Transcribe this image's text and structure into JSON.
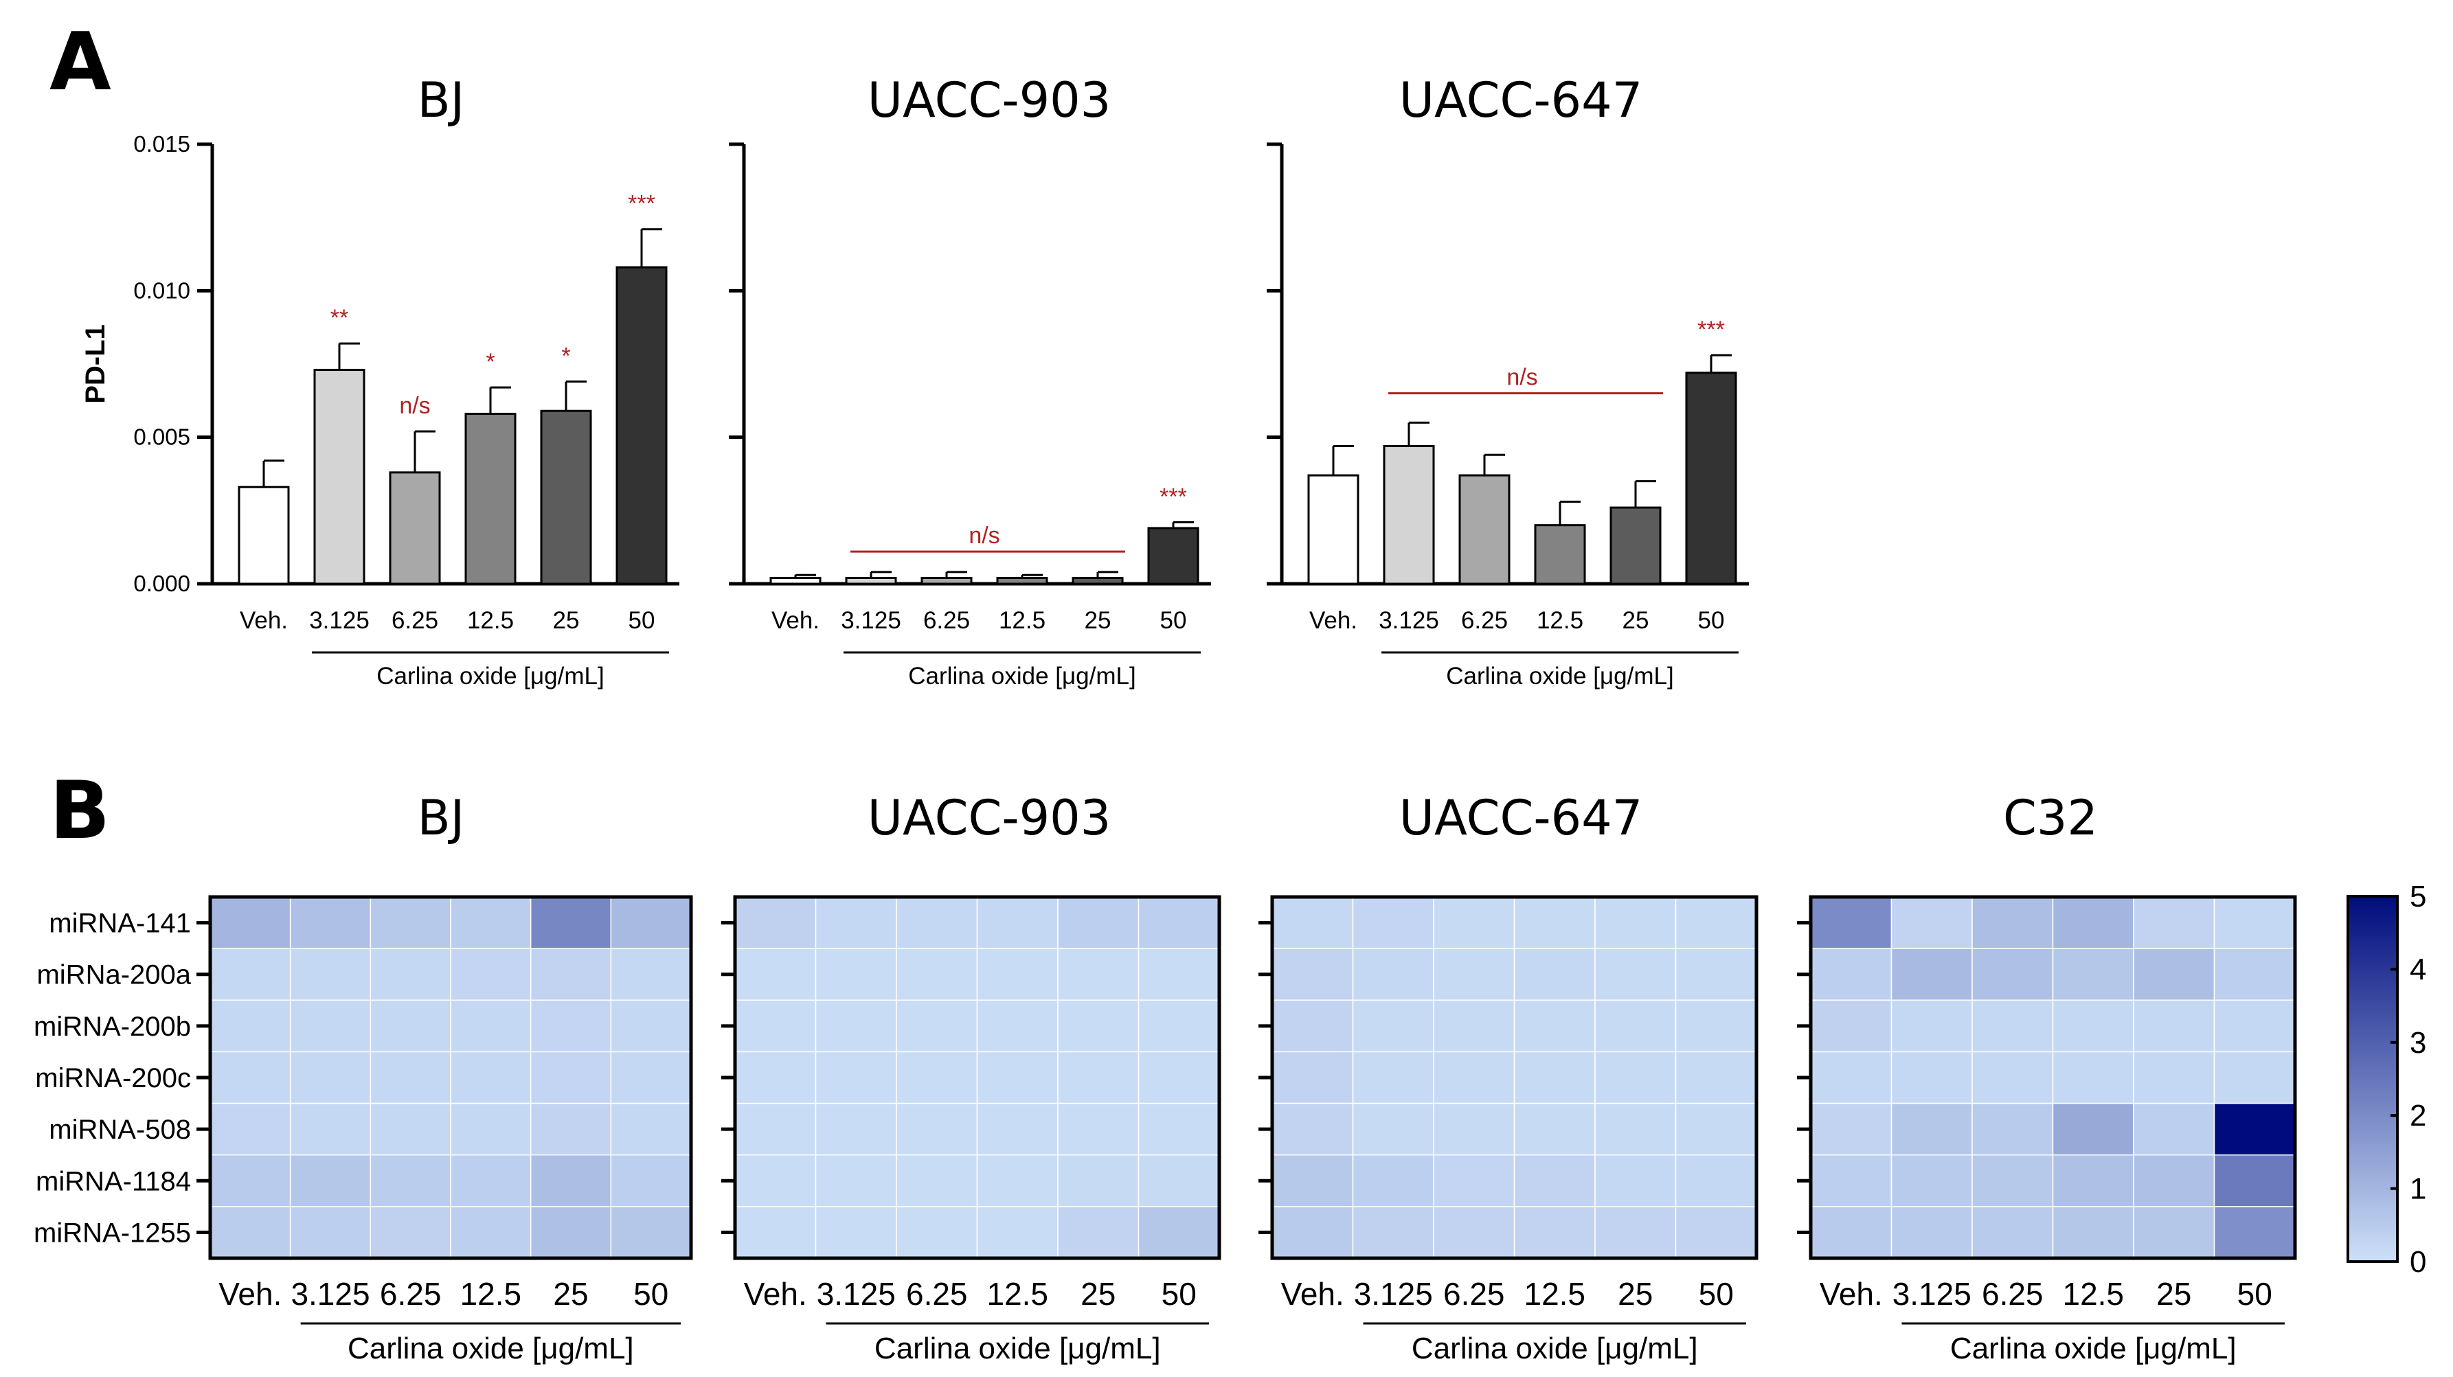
{
  "panel_labels": {
    "a": "A",
    "b": "B"
  },
  "chart_data": [
    {
      "type": "bar",
      "panel": "A",
      "title": "BJ",
      "ylabel": "PD-L1",
      "xlabel": "Carlina oxide [μg/mL]",
      "categories": [
        "Veh.",
        "3.125",
        "6.25",
        "12.5",
        "25",
        "50"
      ],
      "values": [
        0.0033,
        0.0073,
        0.0038,
        0.0058,
        0.0059,
        0.0108
      ],
      "errors": [
        0.0009,
        0.0009,
        0.0014,
        0.0009,
        0.001,
        0.0013
      ],
      "ylim": [
        0,
        0.015
      ],
      "yticks": [
        "0.000",
        "0.005",
        "0.010",
        "0.015"
      ],
      "annotations": [
        "",
        "**",
        "n/s",
        "*",
        "*",
        "***"
      ],
      "group_annotation": null
    },
    {
      "type": "bar",
      "panel": "A",
      "title": "UACC-903",
      "xlabel": "Carlina oxide [μg/mL]",
      "categories": [
        "Veh.",
        "3.125",
        "6.25",
        "12.5",
        "25",
        "50"
      ],
      "values": [
        0.0002,
        0.0002,
        0.0002,
        0.0002,
        0.0002,
        0.0019
      ],
      "errors": [
        0.0001,
        0.0002,
        0.0002,
        0.0001,
        0.0002,
        0.0002
      ],
      "ylim": [
        0,
        0.015
      ],
      "annotations": [
        "",
        "",
        "",
        "",
        "",
        "***"
      ],
      "group_annotation": {
        "text": "n/s",
        "from": 1,
        "to": 4,
        "level": 0.0011
      }
    },
    {
      "type": "bar",
      "panel": "A",
      "title": "UACC-647",
      "xlabel": "Carlina oxide [μg/mL]",
      "categories": [
        "Veh.",
        "3.125",
        "6.25",
        "12.5",
        "25",
        "50"
      ],
      "values": [
        0.0037,
        0.0047,
        0.0037,
        0.002,
        0.0026,
        0.0072
      ],
      "errors": [
        0.001,
        0.0008,
        0.0007,
        0.0008,
        0.0009,
        0.0006
      ],
      "ylim": [
        0,
        0.015
      ],
      "annotations": [
        "",
        "",
        "",
        "",
        "",
        "***"
      ],
      "group_annotation": {
        "text": "n/s",
        "from": 1,
        "to": 4,
        "level": 0.0065
      }
    },
    {
      "type": "heatmap",
      "panel": "B",
      "title": "BJ",
      "xlabel": "Carlina oxide [μg/mL]",
      "columns": [
        "Veh.",
        "3.125",
        "6.25",
        "12.5",
        "25",
        "50"
      ],
      "rows": [
        "miRNA-141",
        "miRNa-200a",
        "miRNA-200b",
        "miRNA-200c",
        "miRNA-508",
        "miRNA-1184",
        "miRNA-1255"
      ],
      "values": [
        [
          1.0,
          0.75,
          0.55,
          0.45,
          2.1,
          0.9
        ],
        [
          0.2,
          0.2,
          0.2,
          0.25,
          0.3,
          0.2
        ],
        [
          0.2,
          0.2,
          0.2,
          0.2,
          0.25,
          0.2
        ],
        [
          0.2,
          0.2,
          0.2,
          0.2,
          0.25,
          0.2
        ],
        [
          0.25,
          0.2,
          0.2,
          0.2,
          0.3,
          0.2
        ],
        [
          0.5,
          0.6,
          0.45,
          0.4,
          0.8,
          0.4
        ],
        [
          0.45,
          0.4,
          0.35,
          0.4,
          0.75,
          0.6
        ]
      ]
    },
    {
      "type": "heatmap",
      "panel": "B",
      "title": "UACC-903",
      "xlabel": "Carlina oxide [μg/mL]",
      "columns": [
        "Veh.",
        "3.125",
        "6.25",
        "12.5",
        "25",
        "50"
      ],
      "rows": [
        "miRNA-141",
        "miRNa-200a",
        "miRNA-200b",
        "miRNA-200c",
        "miRNA-508",
        "miRNA-1184",
        "miRNA-1255"
      ],
      "values": [
        [
          0.35,
          0.2,
          0.2,
          0.2,
          0.4,
          0.4
        ],
        [
          0.1,
          0.1,
          0.1,
          0.1,
          0.1,
          0.1
        ],
        [
          0.1,
          0.1,
          0.1,
          0.1,
          0.1,
          0.1
        ],
        [
          0.1,
          0.1,
          0.1,
          0.1,
          0.1,
          0.1
        ],
        [
          0.1,
          0.1,
          0.1,
          0.1,
          0.1,
          0.1
        ],
        [
          0.1,
          0.1,
          0.1,
          0.1,
          0.15,
          0.15
        ],
        [
          0.1,
          0.1,
          0.1,
          0.1,
          0.3,
          0.6
        ]
      ]
    },
    {
      "type": "heatmap",
      "panel": "B",
      "title": "UACC-647",
      "xlabel": "Carlina oxide [μg/mL]",
      "columns": [
        "Veh.",
        "3.125",
        "6.25",
        "12.5",
        "25",
        "50"
      ],
      "rows": [
        "miRNA-141",
        "miRNa-200a",
        "miRNA-200b",
        "miRNA-200c",
        "miRNA-508",
        "miRNA-1184",
        "miRNA-1255"
      ],
      "values": [
        [
          0.2,
          0.25,
          0.15,
          0.15,
          0.15,
          0.15
        ],
        [
          0.3,
          0.2,
          0.15,
          0.2,
          0.15,
          0.15
        ],
        [
          0.3,
          0.15,
          0.15,
          0.15,
          0.15,
          0.15
        ],
        [
          0.3,
          0.15,
          0.15,
          0.15,
          0.15,
          0.15
        ],
        [
          0.3,
          0.15,
          0.15,
          0.15,
          0.15,
          0.15
        ],
        [
          0.55,
          0.4,
          0.25,
          0.3,
          0.2,
          0.2
        ],
        [
          0.5,
          0.35,
          0.3,
          0.3,
          0.3,
          0.3
        ]
      ]
    },
    {
      "type": "heatmap",
      "panel": "B",
      "title": "C32",
      "xlabel": "Carlina oxide [μg/mL]",
      "columns": [
        "Veh.",
        "3.125",
        "6.25",
        "12.5",
        "25",
        "50"
      ],
      "rows": [
        "miRNA-141",
        "miRNa-200a",
        "miRNA-200b",
        "miRNA-200c",
        "miRNA-508",
        "miRNA-1184",
        "miRNA-1255"
      ],
      "values": [
        [
          2.0,
          0.3,
          0.8,
          1.0,
          0.3,
          0.2
        ],
        [
          0.4,
          0.9,
          0.75,
          0.6,
          0.8,
          0.4
        ],
        [
          0.35,
          0.2,
          0.2,
          0.2,
          0.2,
          0.2
        ],
        [
          0.2,
          0.2,
          0.2,
          0.2,
          0.2,
          0.2
        ],
        [
          0.3,
          0.6,
          0.5,
          1.3,
          0.4,
          5.0
        ],
        [
          0.4,
          0.5,
          0.55,
          0.75,
          0.75,
          2.4
        ],
        [
          0.5,
          0.5,
          0.5,
          0.6,
          0.6,
          1.9
        ]
      ]
    }
  ],
  "colorbar": {
    "min": 0,
    "max": 5,
    "ticks": [
      "0",
      "1",
      "2",
      "3",
      "4",
      "5"
    ],
    "low_color": "#cde0f8",
    "high_color": "#000c7d"
  },
  "colors": {
    "significance": "#b22222",
    "bar_fills": [
      "#ffffff",
      "#d4d4d4",
      "#a8a8a8",
      "#838383",
      "#5c5c5c",
      "#333333"
    ]
  }
}
